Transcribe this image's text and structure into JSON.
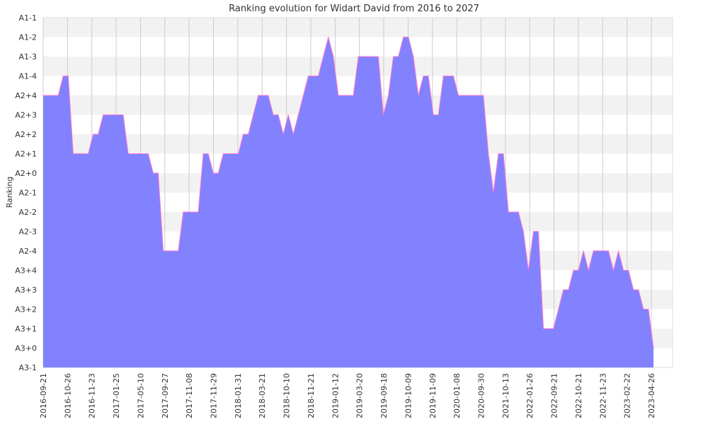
{
  "chart_data": {
    "type": "area",
    "title": "Ranking evolution for Widart David from 2016 to 2027",
    "ylabel": "Ranking",
    "xlabel": "",
    "grid": true,
    "colors": {
      "fill": "#7b7bff",
      "line": "#ff7ad1",
      "band": "#f2f2f2",
      "grid": "#cccccc"
    },
    "y_categories": [
      "A3-1",
      "A3+0",
      "A3+1",
      "A3+2",
      "A3+3",
      "A3+4",
      "A2-4",
      "A2-3",
      "A2-2",
      "A2-1",
      "A2+0",
      "A2+1",
      "A2+2",
      "A2+3",
      "A2+4",
      "A1-4",
      "A1-3",
      "A1-2",
      "A1-1"
    ],
    "x_tick_labels": [
      "2016-09-21",
      "2016-10-26",
      "2016-11-23",
      "2017-01-25",
      "2017-05-10",
      "2017-09-27",
      "2017-11-08",
      "2017-11-29",
      "2018-01-31",
      "2018-03-21",
      "2018-10-10",
      "2018-11-21",
      "2019-01-12",
      "2019-03-20",
      "2019-09-18",
      "2019-10-09",
      "2019-11-09",
      "2020-01-08",
      "2020-09-30",
      "2021-10-13",
      "2022-01-26",
      "2022-09-21",
      "2022-10-21",
      "2022-11-23",
      "2023-02-22",
      "2023-04-26"
    ],
    "series": [
      {
        "values": [
          "A2+4",
          "A2+4",
          "A2+4",
          "A2+4",
          "A1-4",
          "A1-4",
          "A2+1",
          "A2+1",
          "A2+1",
          "A2+1",
          "A2+2",
          "A2+2",
          "A2+3",
          "A2+3",
          "A2+3",
          "A2+3",
          "A2+3",
          "A2+1",
          "A2+1",
          "A2+1",
          "A2+1",
          "A2+1",
          "A2+0",
          "A2+0",
          "A2-4",
          "A2-4",
          "A2-4",
          "A2-4",
          "A2-2",
          "A2-2",
          "A2-2",
          "A2-2",
          "A2+1",
          "A2+1",
          "A2+0",
          "A2+0",
          "A2+1",
          "A2+1",
          "A2+1",
          "A2+1",
          "A2+2",
          "A2+2",
          "A2+3",
          "A2+4",
          "A2+4",
          "A2+4",
          "A2+3",
          "A2+3",
          "A2+2",
          "A2+3",
          "A2+2",
          "A2+3",
          "A2+4",
          "A1-4",
          "A1-4",
          "A1-4",
          "A1-3",
          "A1-2",
          "A1-3",
          "A2+4",
          "A2+4",
          "A2+4",
          "A2+4",
          "A1-3",
          "A1-3",
          "A1-3",
          "A1-3",
          "A1-3",
          "A2+3",
          "A2+4",
          "A1-3",
          "A1-3",
          "A1-2",
          "A1-2",
          "A1-3",
          "A2+4",
          "A1-4",
          "A1-4",
          "A2+3",
          "A2+3",
          "A1-4",
          "A1-4",
          "A1-4",
          "A2+4",
          "A2+4",
          "A2+4",
          "A2+4",
          "A2+4",
          "A2+4",
          "A2+1",
          "A2-1",
          "A2+1",
          "A2+1",
          "A2-2",
          "A2-2",
          "A2-2",
          "A2-3",
          "A3+4",
          "A2-3",
          "A2-3",
          "A3+1",
          "A3+1",
          "A3+1",
          "A3+2",
          "A3+3",
          "A3+3",
          "A3+4",
          "A3+4",
          "A2-4",
          "A3+4",
          "A2-4",
          "A2-4",
          "A2-4",
          "A2-4",
          "A3+4",
          "A2-4",
          "A3+4",
          "A3+4",
          "A3+3",
          "A3+3",
          "A3+2",
          "A3+2",
          "A3+0"
        ]
      }
    ]
  }
}
